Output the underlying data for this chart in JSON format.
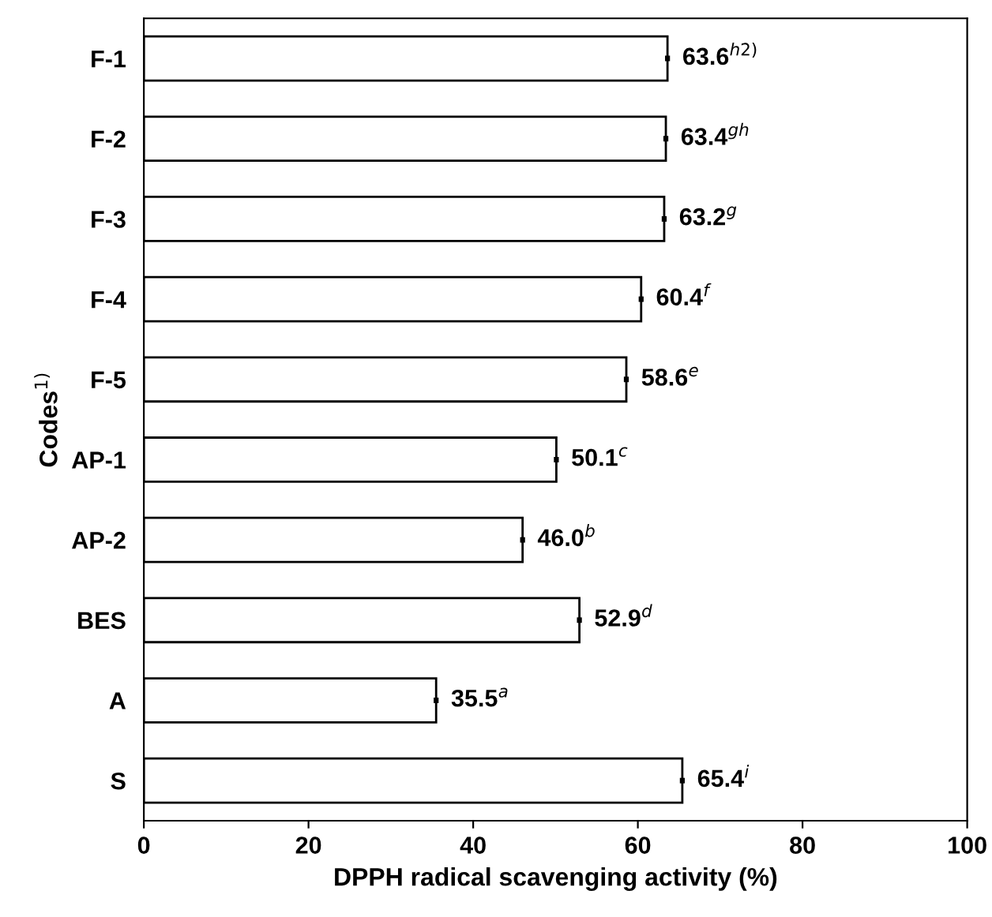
{
  "chart_data": {
    "type": "bar",
    "orientation": "horizontal",
    "xlabel": "DPPH radical scavenging activity (%)",
    "ylabel": "Codes$^{1)}$",
    "categories": [
      "F-1",
      "F-2",
      "F-3",
      "F-4",
      "F-5",
      "AP-1",
      "AP-2",
      "BES",
      "A",
      "S"
    ],
    "values": [
      63.6,
      63.4,
      63.2,
      60.4,
      58.6,
      50.1,
      46.0,
      52.9,
      35.5,
      65.4
    ],
    "errors": [
      0.3,
      0.3,
      0.3,
      0.3,
      0.3,
      0.3,
      0.3,
      0.3,
      0.3,
      0.3
    ],
    "value_labels": [
      "63.6$^{h2)}$",
      "63.4$^{gh}$",
      "63.2$^{g}$",
      "60.4$^{f}$",
      "58.6$^{e}$",
      "50.1$^{c}$",
      "46.0$^{b}$",
      "52.9$^{d}$",
      "35.5$^{a}$",
      "65.4$^{i}$"
    ],
    "color": "#ffffff",
    "xlim": [
      0,
      100
    ],
    "xticks": [
      0,
      20,
      40,
      60,
      80,
      100
    ],
    "grid": false,
    "legend": false
  }
}
